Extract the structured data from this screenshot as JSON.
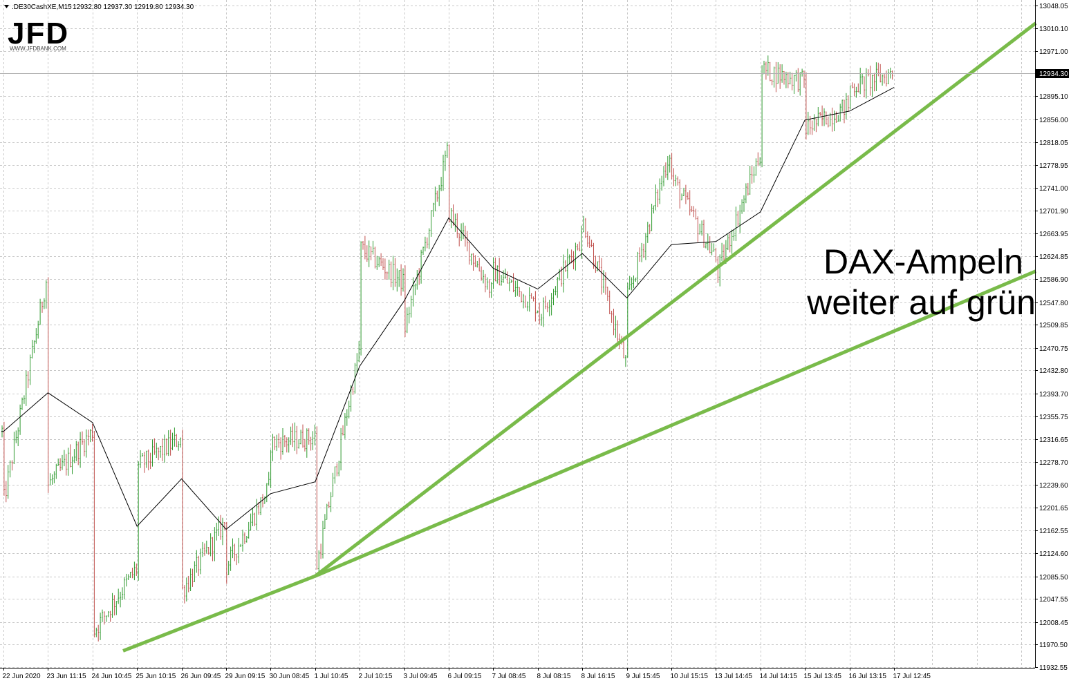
{
  "header": {
    "symbol": ".DE30CashXE,M15",
    "ohlc": "12932.80 12937.30 12919.80 12934.30"
  },
  "logo": {
    "brand": "JFD",
    "url": "WWW.JFDBANK.COM"
  },
  "annotation": {
    "line1": "DAX-Ampeln",
    "line2": "weiter auf grün"
  },
  "colors": {
    "bull": "#2e9a2e",
    "bear": "#c0504d",
    "trendline": "#79bb4a",
    "ma": "#000000",
    "grid": "#c8c8c8"
  },
  "chart_data": {
    "type": "candlestick",
    "symbol": ".DE30CashXE",
    "timeframe": "M15",
    "current_price": "12934.30",
    "y_ticks": [
      "13048.05",
      "13010.10",
      "12971.00",
      "12934.30",
      "12895.10",
      "12856.00",
      "12818.05",
      "12778.95",
      "12741.00",
      "12701.90",
      "12663.95",
      "12624.85",
      "12586.90",
      "12547.80",
      "12509.85",
      "12470.75",
      "12432.80",
      "12393.70",
      "12355.75",
      "12316.65",
      "12278.70",
      "12239.60",
      "12201.65",
      "12162.55",
      "12124.60",
      "12085.50",
      "12047.55",
      "12008.45",
      "11970.50",
      "11932.55"
    ],
    "x_ticks": [
      "22 Jun 2020",
      "23 Jun 11:15",
      "24 Jun 10:45",
      "25 Jun 10:15",
      "26 Jun 09:45",
      "29 Jun 09:15",
      "30 Jun 08:45",
      "1 Jul 10:45",
      "2 Jul 10:15",
      "3 Jul 09:45",
      "6 Jul 09:15",
      "7 Jul 08:45",
      "8 Jul 08:15",
      "8 Jul 16:15",
      "9 Jul 15:45",
      "10 Jul 15:15",
      "13 Jul 14:45",
      "14 Jul 14:15",
      "15 Jul 13:45",
      "16 Jul 13:15",
      "17 Jul 12:45"
    ],
    "ylim": [
      11932.55,
      13048.05
    ],
    "moving_average": {
      "color": "black",
      "path": [
        [
          "22 Jun 2020",
          12330
        ],
        [
          "23 Jun 11:15",
          12395
        ],
        [
          "24 Jun 10:45",
          12345
        ],
        [
          "25 Jun 10:15",
          12170
        ],
        [
          "26 Jun 09:45",
          12250
        ],
        [
          "29 Jun 09:15",
          12165
        ],
        [
          "30 Jun 08:45",
          12225
        ],
        [
          "1 Jul 10:45",
          12245
        ],
        [
          "2 Jul 10:15",
          12440
        ],
        [
          "3 Jul 09:45",
          12550
        ],
        [
          "6 Jul 09:15",
          12690
        ],
        [
          "7 Jul 08:45",
          12605
        ],
        [
          "8 Jul 08:15",
          12570
        ],
        [
          "8 Jul 16:15",
          12630
        ],
        [
          "9 Jul 15:45",
          12555
        ],
        [
          "10 Jul 15:15",
          12645
        ],
        [
          "13 Jul 14:45",
          12650
        ],
        [
          "14 Jul 14:15",
          12700
        ],
        [
          "15 Jul 13:45",
          12855
        ],
        [
          "16 Jul 13:15",
          12870
        ],
        [
          "17 Jul 12:45",
          12910
        ]
      ]
    },
    "trendlines": [
      {
        "from": [
          "24 Jun 10:45",
          11960
        ],
        "to": [
          "1 Jul 10:45",
          12086
        ]
      },
      {
        "from": [
          "1 Jul 10:45",
          12086
        ],
        "to": [
          "17 Jul 12:45",
          12835
        ]
      },
      {
        "from": [
          "1 Jul 10:45",
          12086
        ],
        "to": [
          "17 Jul 12:45",
          12499
        ]
      }
    ],
    "price_path": [
      [
        "22 Jun 2020",
        12330
      ],
      [
        "22 Jun 2020",
        12210
      ],
      [
        "23 Jun 11:15",
        12600
      ],
      [
        "23 Jun 11:15",
        12240
      ],
      [
        "24 Jun 10:45",
        12330
      ],
      [
        "24 Jun 10:45",
        11990
      ],
      [
        "25 Jun 10:15",
        12100
      ],
      [
        "25 Jun 10:15",
        12270
      ],
      [
        "26 Jun 09:45",
        12320
      ],
      [
        "26 Jun 09:45",
        12060
      ],
      [
        "29 Jun 09:15",
        12180
      ],
      [
        "29 Jun 09:15",
        12100
      ],
      [
        "30 Jun 08:45",
        12240
      ],
      [
        "30 Jun 08:45",
        12310
      ],
      [
        "1 Jul 10:45",
        12320
      ],
      [
        "1 Jul 10:45",
        12090
      ],
      [
        "2 Jul 10:15",
        12470
      ],
      [
        "2 Jul 10:15",
        12640
      ],
      [
        "3 Jul 09:45",
        12580
      ],
      [
        "3 Jul 09:45",
        12500
      ],
      [
        "6 Jul 09:15",
        12810
      ],
      [
        "6 Jul 09:15",
        12700
      ],
      [
        "7 Jul 08:45",
        12560
      ],
      [
        "7 Jul 08:45",
        12600
      ],
      [
        "8 Jul 08:15",
        12540
      ],
      [
        "8 Jul 08:15",
        12520
      ],
      [
        "8 Jul 16:15",
        12660
      ],
      [
        "8 Jul 16:15",
        12690
      ],
      [
        "9 Jul 15:45",
        12440
      ],
      [
        "9 Jul 15:45",
        12550
      ],
      [
        "10 Jul 15:15",
        12810
      ],
      [
        "10 Jul 15:15",
        12760
      ],
      [
        "13 Jul 14:45",
        12620
      ],
      [
        "13 Jul 14:45",
        12590
      ],
      [
        "14 Jul 14:15",
        12800
      ],
      [
        "14 Jul 14:15",
        12940
      ],
      [
        "15 Jul 13:45",
        12920
      ],
      [
        "15 Jul 13:45",
        12840
      ],
      [
        "16 Jul 13:15",
        12880
      ],
      [
        "16 Jul 13:15",
        12910
      ],
      [
        "17 Jul 12:45",
        12934.3
      ]
    ]
  }
}
